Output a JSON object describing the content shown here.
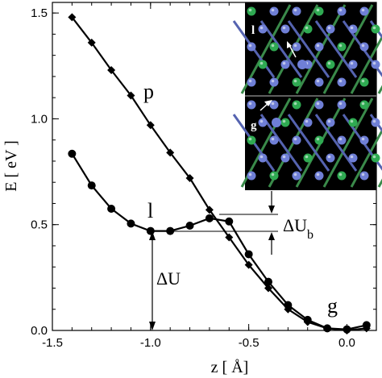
{
  "chart_data": {
    "type": "line",
    "xlabel": "z [ Å]",
    "ylabel": "E [ eV ]",
    "xlim": [
      -1.5,
      0.15
    ],
    "ylim": [
      0.0,
      1.55
    ],
    "xticks": [
      -1.5,
      -1.0,
      -0.5,
      0.0
    ],
    "xtick_labels": [
      "-1.5",
      "-1.0",
      "-0.5",
      "0.0"
    ],
    "yticks": [
      0.0,
      0.5,
      1.0,
      1.5
    ],
    "ytick_labels": [
      "0.0",
      "0.5",
      "1.0",
      "1.5"
    ],
    "series": [
      {
        "marker": "diamond",
        "x": [
          -1.4,
          -1.3,
          -1.2,
          -1.1,
          -1.0,
          -0.9,
          -0.8,
          -0.7,
          -0.6,
          -0.5,
          -0.4,
          -0.3,
          -0.2,
          -0.1,
          0.0,
          0.1
        ],
        "y": [
          1.48,
          1.36,
          1.23,
          1.11,
          0.97,
          0.84,
          0.72,
          0.57,
          0.44,
          0.31,
          0.2,
          0.1,
          0.04,
          0.01,
          0.0,
          0.01
        ]
      },
      {
        "marker": "circle",
        "x": [
          -1.4,
          -1.3,
          -1.2,
          -1.1,
          -1.0,
          -0.9,
          -0.8,
          -0.7,
          -0.6,
          -0.5,
          -0.4,
          -0.3,
          -0.2,
          -0.1,
          0.0,
          0.1
        ],
        "y": [
          0.835,
          0.685,
          0.575,
          0.505,
          0.47,
          0.47,
          0.495,
          0.53,
          0.515,
          0.36,
          0.23,
          0.12,
          0.05,
          0.01,
          0.005,
          0.025
        ]
      }
    ],
    "annotations": {
      "p": "p",
      "l": "l",
      "g": "g",
      "delta_u": "ΔU",
      "delta_u_b_main": "ΔU",
      "delta_u_b_sub": "b"
    }
  },
  "inset": {
    "top_label": "l",
    "bottom_label": "g",
    "background": "#000000",
    "atom_colors": [
      "#6f7fd6",
      "#2faa52"
    ]
  }
}
